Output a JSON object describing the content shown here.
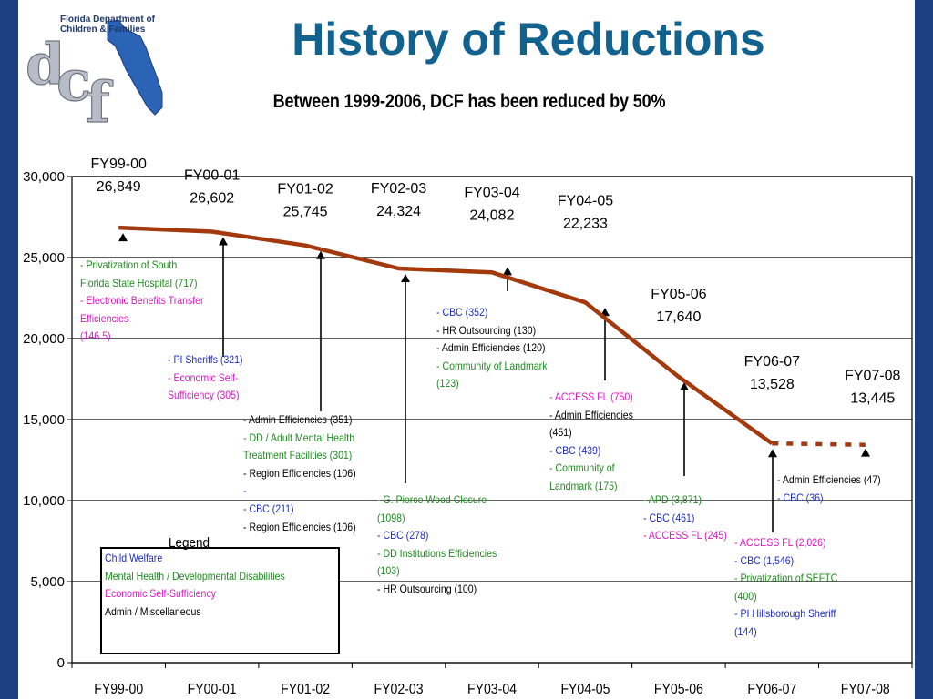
{
  "header": {
    "logo_text": "Florida Department of Children & Families",
    "logo_letters": "dcf",
    "title": "History of Reductions",
    "subtitle": "Between 1999-2006, DCF has been reduced by 50%"
  },
  "chart_data": {
    "type": "line",
    "x": [
      "FY99-00",
      "FY00-01",
      "FY01-02",
      "FY02-03",
      "FY03-04",
      "FY04-05",
      "FY05-06",
      "FY06-07",
      "FY07-08"
    ],
    "series": [
      {
        "values": [
          26849,
          26602,
          25745,
          24324,
          24082,
          22233,
          17640,
          13528,
          null
        ],
        "color": "#a33a0d",
        "style": "solid"
      },
      {
        "values": [
          null,
          null,
          null,
          null,
          null,
          null,
          null,
          13528,
          13445
        ],
        "color": "#a33a0d",
        "style": "dashed"
      }
    ],
    "point_labels": [
      {
        "fy": "FY99-00",
        "value": "26,849"
      },
      {
        "fy": "FY00-01",
        "value": "26,602"
      },
      {
        "fy": "FY01-02",
        "value": "25,745"
      },
      {
        "fy": "FY02-03",
        "value": "24,324"
      },
      {
        "fy": "FY03-04",
        "value": "24,082"
      },
      {
        "fy": "FY04-05",
        "value": "22,233"
      },
      {
        "fy": "FY05-06",
        "value": "17,640"
      },
      {
        "fy": "FY06-07",
        "value": "13,528"
      },
      {
        "fy": "FY07-08",
        "value": "13,445"
      }
    ],
    "y_ticks": [
      "0",
      "5,000",
      "10,000",
      "15,000",
      "20,000",
      "25,000",
      "30,000"
    ],
    "ylim": [
      0,
      30000
    ],
    "grid": true,
    "annotations": [
      {
        "id": "fy99",
        "lines": [
          {
            "text": "- Privatization of South",
            "color": "green"
          },
          {
            "text": "Florida State Hospital (717)",
            "color": "green"
          },
          {
            "text": "- Electronic Benefits Transfer",
            "color": "magenta"
          },
          {
            "text": "Efficiencies",
            "color": "magenta"
          },
          {
            "text": "(146.5)",
            "color": "magenta"
          }
        ]
      },
      {
        "id": "fy00",
        "lines": [
          {
            "text": "- PI Sheriffs (321)",
            "color": "blue"
          },
          {
            "text": "- Economic Self-",
            "color": "magenta"
          },
          {
            "text": "Sufficiency (305)",
            "color": "magenta"
          }
        ]
      },
      {
        "id": "fy01",
        "lines": [
          {
            "text": "- Admin Efficiencies (351)",
            "color": "black"
          },
          {
            "text": "- DD / Adult Mental Health",
            "color": "green"
          },
          {
            "text": "Treatment Facilities (301)",
            "color": "green"
          },
          {
            "text": "- Region Efficiencies (106)",
            "color": "black"
          },
          {
            "text": "-",
            "color": "blue"
          },
          {
            "text": "- CBC (211)",
            "color": "blue"
          },
          {
            "text": "- Region Efficiencies (106)",
            "color": "black"
          }
        ]
      },
      {
        "id": "fy02",
        "lines": [
          {
            "text": "- G. Pierce Wood Closure",
            "color": "green"
          },
          {
            "text": "(1098)",
            "color": "green"
          },
          {
            "text": "- CBC (278)",
            "color": "blue"
          },
          {
            "text": "- DD Institutions Efficiencies",
            "color": "green"
          },
          {
            "text": "(103)",
            "color": "green"
          },
          {
            "text": "- HR Outsourcing (100)",
            "color": "black"
          }
        ]
      },
      {
        "id": "fy03",
        "lines": [
          {
            "text": "- CBC (352)",
            "color": "blue"
          },
          {
            "text": "- HR Outsourcing (130)",
            "color": "black"
          },
          {
            "text": "- Admin Efficiencies (120)",
            "color": "black"
          },
          {
            "text": "- Community of Landmark",
            "color": "green"
          },
          {
            "text": "(123)",
            "color": "green"
          }
        ]
      },
      {
        "id": "fy04",
        "lines": [
          {
            "text": "- ACCESS FL (750)",
            "color": "magenta"
          },
          {
            "text": "- Admin Efficiencies",
            "color": "black"
          },
          {
            "text": "(451)",
            "color": "black"
          },
          {
            "text": "- CBC (439)",
            "color": "blue"
          },
          {
            "text": "- Community of",
            "color": "green"
          },
          {
            "text": "Landmark (175)",
            "color": "green"
          }
        ]
      },
      {
        "id": "fy05",
        "lines": [
          {
            "text": "- APD (3,871)",
            "color": "green"
          },
          {
            "text": "- CBC (461)",
            "color": "blue"
          },
          {
            "text": "- ACCESS FL (245)",
            "color": "magenta"
          }
        ]
      },
      {
        "id": "fy06",
        "lines": [
          {
            "text": "- ACCESS FL (2,026)",
            "color": "magenta"
          },
          {
            "text": "- CBC (1,546)",
            "color": "blue"
          },
          {
            "text": "- Privatization of SEFTC",
            "color": "green"
          },
          {
            "text": "(400)",
            "color": "green"
          },
          {
            "text": "- PI Hillsborough Sheriff",
            "color": "blue"
          },
          {
            "text": "(144)",
            "color": "blue"
          }
        ]
      },
      {
        "id": "fy07",
        "lines": [
          {
            "text": "- Admin Efficiencies (47)",
            "color": "black"
          },
          {
            "text": "- CBC (36)",
            "color": "blue"
          }
        ]
      }
    ],
    "legend": {
      "title": "Legend",
      "items": [
        {
          "text": "Child Welfare",
          "color": "blue"
        },
        {
          "text": "Mental Health / Developmental Disabilities",
          "color": "green"
        },
        {
          "text": "Economic Self-Sufficiency",
          "color": "magenta"
        },
        {
          "text": "Admin / Miscellaneous",
          "color": "black"
        }
      ]
    }
  }
}
